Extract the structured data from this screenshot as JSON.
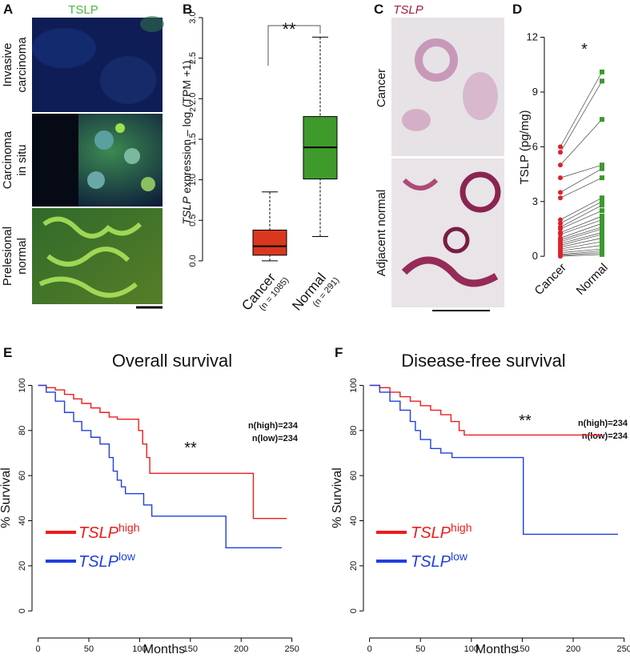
{
  "figure": {
    "panels": [
      "A",
      "B",
      "C",
      "D",
      "E",
      "F"
    ],
    "a": {
      "title": "TSLP",
      "rows": [
        [
          "Invasive",
          "carcinoma"
        ],
        [
          "Carcinoma",
          "in situ"
        ],
        [
          "Prelesional",
          "normal"
        ]
      ]
    },
    "c": {
      "title": "TSLP",
      "rows": [
        "Cancer",
        "Adjacent normal"
      ]
    }
  },
  "chart_data": [
    {
      "type": "box",
      "ylabel": [
        "TSLP",
        " expression – log",
        "2",
        "(TPM +1)"
      ],
      "categories": [
        "Cancer",
        "Normal"
      ],
      "category_notes": [
        "(n = 1085)",
        "(n = 291)"
      ],
      "boxes": [
        {
          "min": 0,
          "q1": 0.07,
          "median": 0.18,
          "q3": 0.38,
          "max": 0.85
        },
        {
          "min": 0.3,
          "q1": 1.01,
          "median": 1.4,
          "q3": 1.78,
          "max": 2.76
        }
      ],
      "colors": [
        "#d9381e",
        "#3f9a2c"
      ],
      "ylim": [
        -0.07,
        3.0
      ],
      "yticks": [
        {
          "value": 0,
          "label": "0.0"
        },
        0.5,
        {
          "value": 1,
          "label": "1.0"
        },
        1.5,
        {
          "value": 2,
          "label": "2.0"
        },
        2.5,
        {
          "value": 3,
          "label": "3.0"
        }
      ],
      "annotation": "**"
    },
    {
      "type": "paired",
      "ylabel": "TSLP (pg/mg)",
      "categories": [
        "Cancer",
        "Normal"
      ],
      "values": [
        [
          6.0,
          5.7,
          5.0,
          4.3,
          3.5,
          3.2,
          2.0,
          1.8,
          1.6,
          1.5,
          1.3,
          1.2,
          1.0,
          0.9,
          0.8,
          0.7,
          0.6,
          0.5,
          0.4,
          0.3,
          0.2,
          0.1,
          0.05,
          0
        ],
        [
          10.1,
          9.6,
          7.5,
          5.0,
          4.8,
          4.3,
          3.2,
          3.0,
          2.8,
          2.5,
          2.2,
          2.0,
          1.8,
          1.6,
          1.5,
          1.3,
          1.2,
          1.0,
          0.8,
          0.6,
          0.4,
          0.3,
          0.2,
          0.1
        ]
      ],
      "colors": [
        "#e0202a",
        "#3a9a2c"
      ],
      "ylim": [
        -0.3,
        12.2
      ],
      "yticks": [
        0,
        3,
        6,
        9,
        12
      ],
      "annotation": "*"
    },
    {
      "type": "step",
      "title": "Overall survival",
      "xlabel": "Months",
      "ylabel": "% Survival",
      "xlim": [
        -6,
        255
      ],
      "ylim": [
        -12,
        103
      ],
      "xticks": [
        0,
        50,
        100,
        150,
        200,
        250
      ],
      "yticks": [
        0,
        20,
        40,
        60,
        80,
        100
      ],
      "series": [
        {
          "name": "TSLP",
          "superscript": "high",
          "color": "#ee1c1c",
          "x": [
            0,
            8,
            17,
            26,
            35,
            43,
            52,
            61,
            70,
            78,
            95,
            99,
            103,
            107,
            110,
            212,
            212,
            245
          ],
          "values": [
            100,
            99,
            98,
            96,
            94,
            92,
            90,
            88,
            86,
            85,
            85,
            80,
            74,
            68,
            61,
            61,
            41,
            41
          ]
        },
        {
          "name": "TSLP",
          "superscript": "low",
          "color": "#1f3fe0",
          "x": [
            0,
            8,
            17,
            26,
            35,
            43,
            52,
            61,
            70,
            74,
            78,
            82,
            86,
            100,
            104,
            112,
            185,
            185,
            240
          ],
          "values": [
            100,
            97,
            93,
            88,
            84,
            80,
            77,
            74,
            68,
            62,
            58,
            55,
            52,
            52,
            47,
            42,
            42,
            28,
            28
          ]
        }
      ],
      "annotations": [
        "n(high)=234",
        "n(low)=234",
        "**"
      ]
    },
    {
      "type": "step",
      "title": "Disease-free survival",
      "xlabel": "Months",
      "ylabel": "% Survival",
      "xlim": [
        -6,
        255
      ],
      "ylim": [
        -12,
        103
      ],
      "xticks": [
        0,
        50,
        100,
        150,
        200,
        250
      ],
      "yticks": [
        0,
        20,
        40,
        60,
        80,
        100
      ],
      "series": [
        {
          "name": "TSLP",
          "superscript": "high",
          "color": "#ee1c1c",
          "x": [
            0,
            10,
            20,
            30,
            40,
            50,
            60,
            70,
            80,
            88,
            93,
            228
          ],
          "values": [
            100,
            99,
            97,
            95,
            93,
            91,
            89,
            87,
            84,
            80,
            78,
            78
          ]
        },
        {
          "name": "TSLP",
          "superscript": "low",
          "color": "#1f3fe0",
          "x": [
            0,
            10,
            20,
            30,
            40,
            45,
            50,
            60,
            70,
            81,
            151,
            151,
            244
          ],
          "values": [
            100,
            97,
            93,
            89,
            84,
            80,
            76,
            72,
            70,
            68,
            68,
            34,
            34
          ]
        }
      ],
      "annotations": [
        "n(high)=234",
        "n(low)=234",
        "**"
      ]
    }
  ]
}
